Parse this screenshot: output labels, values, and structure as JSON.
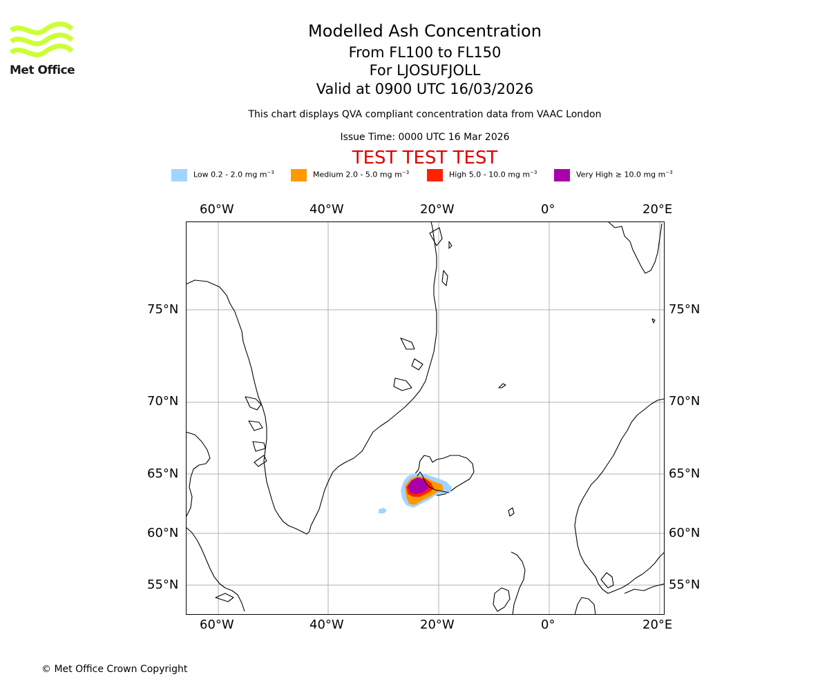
{
  "logo": {
    "text": "Met Office",
    "color": "#ccff33"
  },
  "title": {
    "main": "Modelled Ash Concentration",
    "line1": "From FL100 to FL150",
    "line2": "For LJOSUFJOLL",
    "line3": "Valid at 0900 UTC 16/03/2026"
  },
  "description": "This chart displays QVA compliant concentration data from VAAC London",
  "issue_time": "Issue Time: 0000 UTC 16 Mar 2026",
  "test_banner": "TEST TEST TEST",
  "legend": [
    {
      "label": "Low 0.2 - 2.0 mg m",
      "color": "#a3d4ff"
    },
    {
      "label": "Medium 2.0 - 5.0 mg m",
      "color": "#ff9900"
    },
    {
      "label": "High 5.0 - 10.0 mg m",
      "color": "#ff2200"
    },
    {
      "label": "Very High  ≥  10.0 mg m",
      "color": "#aa00aa"
    }
  ],
  "legend_unit_exp": "−3",
  "axes": {
    "lon_top": [
      "60°W",
      "40°W",
      "20°W",
      "0°",
      "20°E"
    ],
    "lon_bottom": [
      "60°W",
      "40°W",
      "20°W",
      "0°",
      "20°E"
    ],
    "lat_left": [
      "75°N",
      "70°N",
      "65°N",
      "60°N",
      "55°N"
    ],
    "lat_right": [
      "75°N",
      "70°N",
      "65°N",
      "60°N",
      "55°N"
    ]
  },
  "copyright": "© Met Office Crown Copyright"
}
